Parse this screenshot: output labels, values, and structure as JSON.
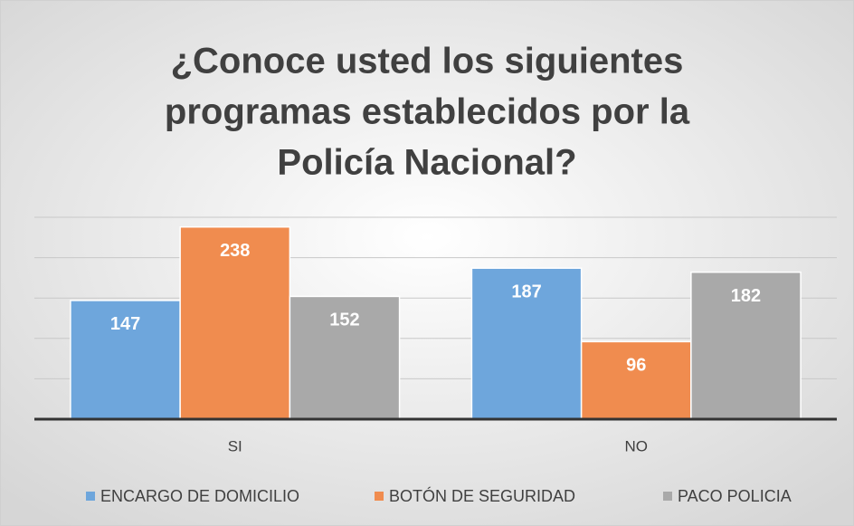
{
  "chart_data": {
    "type": "bar",
    "title": [
      "¿Conoce usted los siguientes",
      "programas establecidos por la",
      "Policía Nacional?"
    ],
    "categories": [
      "SI",
      "NO"
    ],
    "series": [
      {
        "name": "ENCARGO DE DOMICILIO",
        "color": "#6ea6dc",
        "values": [
          147,
          187
        ]
      },
      {
        "name": "BOTÓN DE SEGURIDAD",
        "color": "#f08c4f",
        "values": [
          238,
          96
        ]
      },
      {
        "name": "PACO POLICIA",
        "color": "#a9a9a9",
        "values": [
          152,
          182
        ]
      }
    ],
    "ylim": [
      0,
      250
    ],
    "yticks": [
      0,
      50,
      100,
      150,
      200,
      250
    ],
    "show_tick_labels": false,
    "grid": true,
    "legend": "bottom"
  }
}
